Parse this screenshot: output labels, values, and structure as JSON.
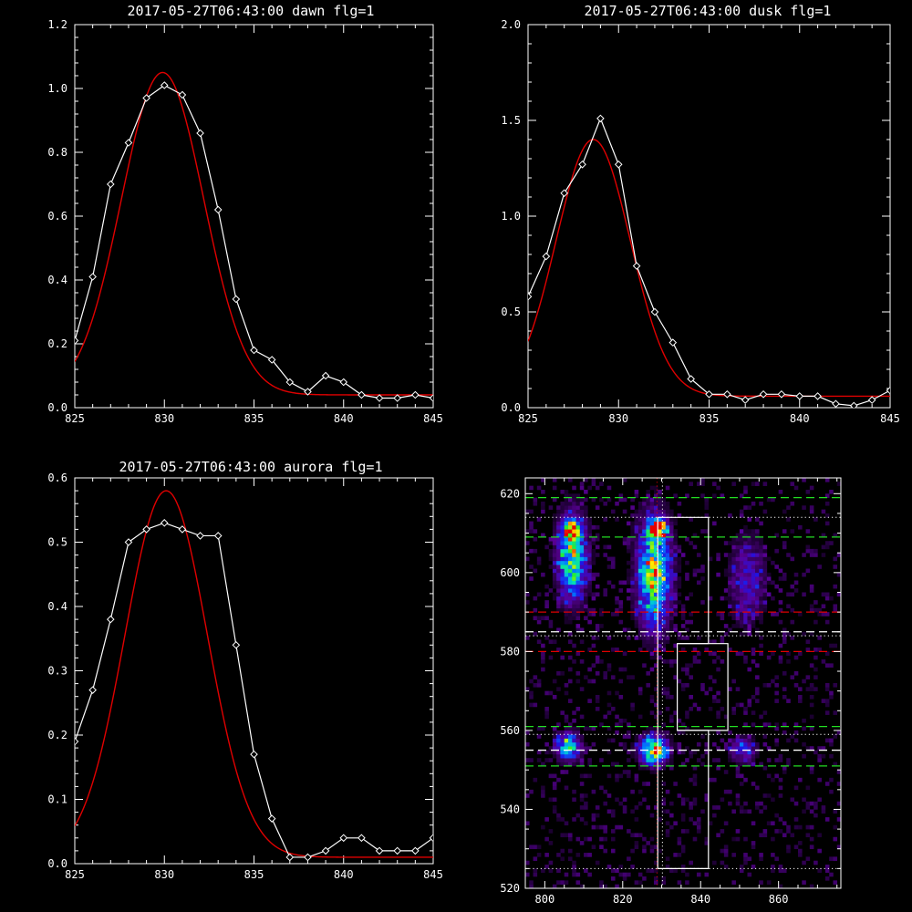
{
  "colors": {
    "background": "#000000",
    "axis": "#ffffff",
    "observed": "#ffffff",
    "fit": "#e00000",
    "green_dash": "#22dd22",
    "red_dash": "#e00000",
    "white_dash": "#ffffff"
  },
  "chart_data": [
    {
      "id": "dawn",
      "type": "line",
      "title": "2017-05-27T06:43:00 dawn flg=1",
      "xlim": [
        825,
        845
      ],
      "ylim": [
        0,
        1.2
      ],
      "xticks": [
        825,
        830,
        835,
        840,
        845
      ],
      "yticks": [
        0.0,
        0.2,
        0.4,
        0.6,
        0.8,
        1.0,
        1.2
      ],
      "ytick_labels": [
        "0.0",
        "0.2",
        "0.4",
        "0.6",
        "0.8",
        "1.0",
        "1.2"
      ],
      "series": [
        {
          "role": "observed",
          "marker": "diamond",
          "x": [
            825,
            826,
            827,
            828,
            829,
            830,
            831,
            832,
            833,
            834,
            835,
            836,
            837,
            838,
            839,
            840,
            841,
            842,
            843,
            844,
            845
          ],
          "y": [
            0.21,
            0.41,
            0.7,
            0.83,
            0.97,
            1.01,
            0.98,
            0.86,
            0.62,
            0.34,
            0.18,
            0.15,
            0.08,
            0.05,
            0.1,
            0.08,
            0.04,
            0.03,
            0.03,
            0.04,
            0.03
          ]
        },
        {
          "role": "fit",
          "gauss": {
            "amp": 1.01,
            "mu": 829.9,
            "sigma": 2.3,
            "base": 0.04
          }
        }
      ]
    },
    {
      "id": "dusk",
      "type": "line",
      "title": "2017-05-27T06:43:00 dusk flg=1",
      "xlim": [
        825,
        845
      ],
      "ylim": [
        0,
        2.0
      ],
      "xticks": [
        825,
        830,
        835,
        840,
        845
      ],
      "yticks": [
        0.0,
        0.5,
        1.0,
        1.5,
        2.0
      ],
      "ytick_labels": [
        "0.0",
        "0.5",
        "1.0",
        "1.5",
        "2.0"
      ],
      "series": [
        {
          "role": "observed",
          "marker": "diamond",
          "x": [
            825,
            826,
            827,
            828,
            829,
            830,
            831,
            832,
            833,
            834,
            835,
            836,
            837,
            838,
            839,
            840,
            841,
            842,
            843,
            844,
            845
          ],
          "y": [
            0.58,
            0.79,
            1.12,
            1.27,
            1.51,
            1.27,
            0.74,
            0.5,
            0.34,
            0.15,
            0.07,
            0.07,
            0.04,
            0.07,
            0.07,
            0.06,
            0.06,
            0.02,
            0.01,
            0.04,
            0.09
          ]
        },
        {
          "role": "fit",
          "gauss": {
            "amp": 1.34,
            "mu": 828.6,
            "sigma": 2.05,
            "base": 0.06
          }
        }
      ]
    },
    {
      "id": "aurora",
      "type": "line",
      "title": "2017-05-27T06:43:00 aurora flg=1",
      "xlim": [
        825,
        845
      ],
      "ylim": [
        0,
        0.6
      ],
      "xticks": [
        825,
        830,
        835,
        840,
        845
      ],
      "yticks": [
        0.0,
        0.1,
        0.2,
        0.3,
        0.4,
        0.5,
        0.6
      ],
      "ytick_labels": [
        "0.0",
        "0.1",
        "0.2",
        "0.3",
        "0.4",
        "0.5",
        "0.6"
      ],
      "series": [
        {
          "role": "observed",
          "marker": "diamond",
          "x": [
            825,
            826,
            827,
            828,
            829,
            830,
            831,
            832,
            833,
            834,
            835,
            836,
            837,
            838,
            839,
            840,
            841,
            842,
            843,
            844,
            845
          ],
          "y": [
            0.19,
            0.27,
            0.38,
            0.5,
            0.52,
            0.53,
            0.52,
            0.51,
            0.51,
            0.34,
            0.17,
            0.07,
            0.01,
            0.01,
            0.02,
            0.04,
            0.04,
            0.02,
            0.02,
            0.02,
            0.04
          ]
        },
        {
          "role": "fit",
          "gauss": {
            "amp": 0.57,
            "mu": 830.1,
            "sigma": 2.3,
            "base": 0.01
          }
        }
      ]
    },
    {
      "id": "image",
      "type": "heatmap",
      "xlim": [
        795,
        876
      ],
      "ylim": [
        520,
        624
      ],
      "xticks": [
        800,
        820,
        840,
        860
      ],
      "yticks": [
        520,
        540,
        560,
        580,
        600,
        620
      ],
      "blobs": [
        {
          "x": 807,
          "y": 604,
          "sx": 2.6,
          "sy": 7.5,
          "amp": 0.78
        },
        {
          "x": 807,
          "y": 611,
          "sx": 1.5,
          "sy": 1.5,
          "amp": 0.9
        },
        {
          "x": 828,
          "y": 600,
          "sx": 3.0,
          "sy": 9.5,
          "amp": 0.85
        },
        {
          "x": 829,
          "y": 611,
          "sx": 1.5,
          "sy": 1.5,
          "amp": 1.0
        },
        {
          "x": 852,
          "y": 598,
          "sx": 3.2,
          "sy": 8.0,
          "amp": 0.33
        },
        {
          "x": 806,
          "y": 556,
          "sx": 2.2,
          "sy": 2.4,
          "amp": 0.75
        },
        {
          "x": 828,
          "y": 555,
          "sx": 2.5,
          "sy": 2.5,
          "amp": 1.0
        },
        {
          "x": 851,
          "y": 555,
          "sx": 2.6,
          "sy": 2.4,
          "amp": 0.35
        }
      ],
      "hlines": [
        {
          "y": 619,
          "style": "green_dash"
        },
        {
          "y": 609,
          "style": "green_dash"
        },
        {
          "y": 614,
          "style": "white_dot"
        },
        {
          "y": 590,
          "style": "red_dash"
        },
        {
          "y": 585,
          "style": "white_dash"
        },
        {
          "y": 584,
          "style": "white_dot"
        },
        {
          "y": 580,
          "style": "red_dash"
        },
        {
          "y": 561,
          "style": "green_dash"
        },
        {
          "y": 559,
          "style": "white_dot"
        },
        {
          "y": 555,
          "style": "white_dash"
        },
        {
          "y": 551,
          "style": "green_dash"
        },
        {
          "y": 525,
          "style": "white_dot"
        }
      ],
      "vlines": [
        {
          "x": 828.8,
          "style": "red_dot"
        },
        {
          "x": 830.2,
          "style": "white_dot"
        }
      ],
      "outline": [
        [
          829,
          614
        ],
        [
          842,
          614
        ],
        [
          842,
          582
        ],
        [
          834,
          582
        ],
        [
          834,
          560
        ],
        [
          842,
          560
        ],
        [
          842,
          525
        ],
        [
          829,
          525
        ]
      ],
      "notch": [
        [
          834,
          582
        ],
        [
          847,
          582
        ],
        [
          847,
          560
        ],
        [
          834,
          560
        ]
      ]
    }
  ]
}
